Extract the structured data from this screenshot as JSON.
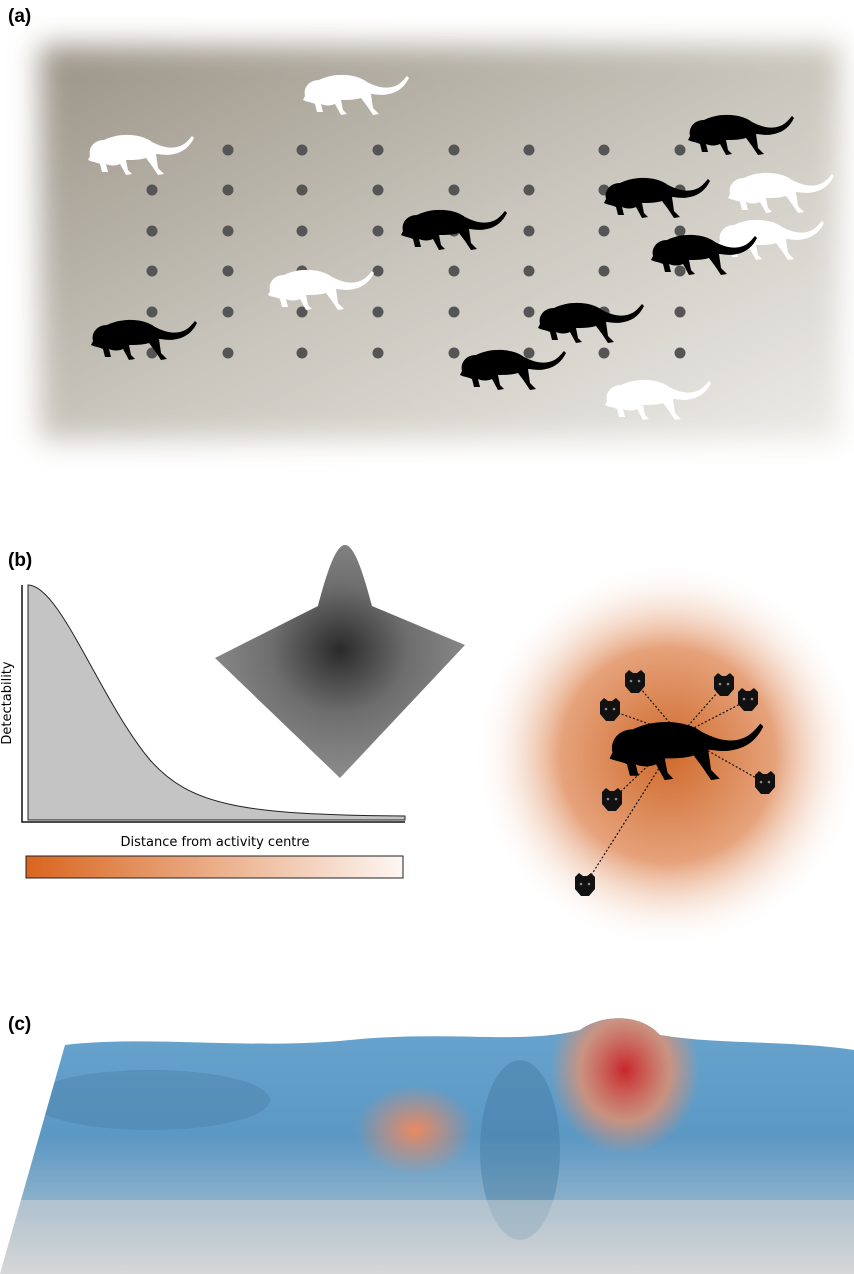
{
  "panels": {
    "a": {
      "label": "(a)"
    },
    "b": {
      "label": "(b)",
      "y_axis_label": "Detectability",
      "x_axis_label": "Distance from activity centre"
    },
    "c": {
      "label": "(c)"
    }
  }
}
